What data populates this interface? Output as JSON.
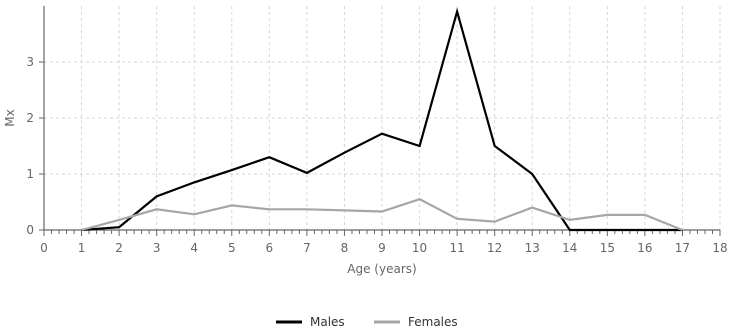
{
  "chart_data": {
    "type": "line",
    "title": "",
    "xlabel": "Age (years)",
    "ylabel": "Mx",
    "xlim": [
      0,
      18
    ],
    "ylim": [
      0,
      4
    ],
    "x_ticks": [
      0,
      1,
      2,
      3,
      4,
      5,
      6,
      7,
      8,
      9,
      10,
      11,
      12,
      13,
      14,
      15,
      16,
      17,
      18
    ],
    "y_ticks": [
      0,
      1,
      2,
      3
    ],
    "grid": true,
    "legend_position": "bottom-center",
    "series": [
      {
        "name": "Males",
        "color": "#000000",
        "x": [
          1,
          2,
          3,
          4,
          5,
          6,
          7,
          8,
          9,
          10,
          11,
          12,
          13,
          14,
          15,
          16,
          17
        ],
        "y": [
          0,
          0.05,
          0.6,
          0.85,
          1.07,
          1.3,
          1.02,
          1.38,
          1.72,
          1.5,
          3.9,
          1.5,
          1.0,
          0,
          0,
          0,
          0
        ]
      },
      {
        "name": "Females",
        "color": "#a6a6a6",
        "x": [
          1,
          2,
          3,
          4,
          5,
          6,
          7,
          8,
          9,
          10,
          11,
          12,
          13,
          14,
          15,
          16,
          17
        ],
        "y": [
          0,
          0.18,
          0.37,
          0.28,
          0.44,
          0.37,
          0.37,
          0.35,
          0.33,
          0.55,
          0.2,
          0.15,
          0.4,
          0.18,
          0.27,
          0.27,
          0
        ]
      }
    ]
  }
}
